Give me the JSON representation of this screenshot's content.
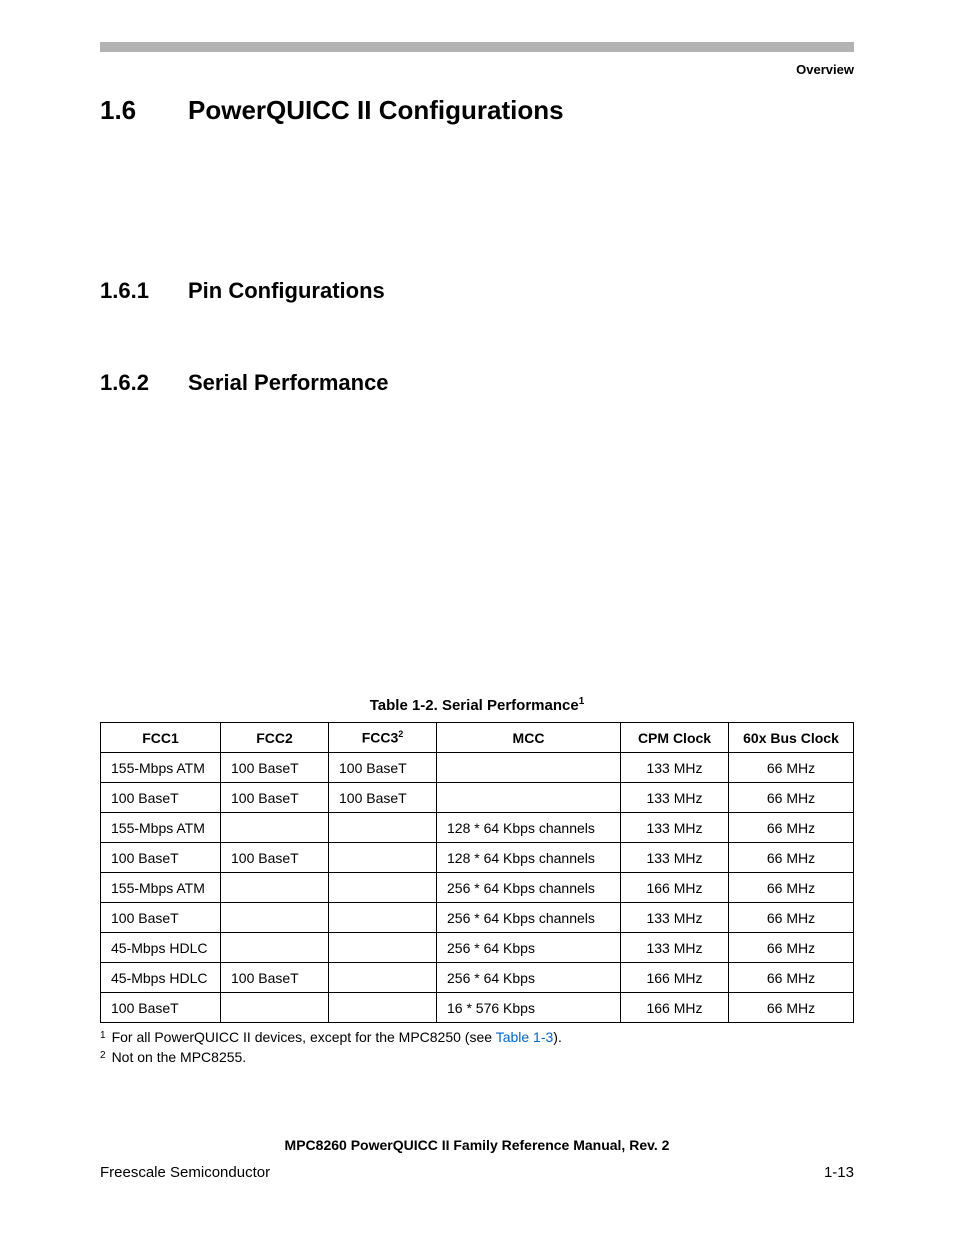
{
  "header": {
    "label": "Overview"
  },
  "sections": {
    "main": {
      "num": "1.6",
      "title": "PowerQUICC II Configurations"
    },
    "sub1": {
      "num": "1.6.1",
      "title": "Pin Configurations"
    },
    "sub2": {
      "num": "1.6.2",
      "title": "Serial Performance"
    }
  },
  "table": {
    "caption_prefix": "Table 1-2.  Serial Performance",
    "caption_sup": "1",
    "columns": {
      "c1": "FCC1",
      "c2": "FCC2",
      "c3": "FCC3",
      "c3_sup": "2",
      "c4": "MCC",
      "c5": "CPM Clock",
      "c6": "60x Bus Clock"
    },
    "rows": [
      {
        "fcc1": "155-Mbps ATM",
        "fcc2": "100 BaseT",
        "fcc3": "100 BaseT",
        "mcc": "",
        "cpm": "133 MHz",
        "bus": "66 MHz"
      },
      {
        "fcc1": "100 BaseT",
        "fcc2": "100 BaseT",
        "fcc3": "100 BaseT",
        "mcc": "",
        "cpm": "133 MHz",
        "bus": "66 MHz"
      },
      {
        "fcc1": "155-Mbps ATM",
        "fcc2": "",
        "fcc3": "",
        "mcc": "128 * 64 Kbps channels",
        "cpm": "133 MHz",
        "bus": "66 MHz"
      },
      {
        "fcc1": "100 BaseT",
        "fcc2": "100 BaseT",
        "fcc3": "",
        "mcc": "128 * 64 Kbps channels",
        "cpm": "133 MHz",
        "bus": "66 MHz"
      },
      {
        "fcc1": "155-Mbps ATM",
        "fcc2": "",
        "fcc3": "",
        "mcc": "256 * 64 Kbps channels",
        "cpm": "166 MHz",
        "bus": "66 MHz"
      },
      {
        "fcc1": "100 BaseT",
        "fcc2": "",
        "fcc3": "",
        "mcc": "256 * 64 Kbps channels",
        "cpm": "133 MHz",
        "bus": "66 MHz"
      },
      {
        "fcc1": "45-Mbps HDLC",
        "fcc2": "",
        "fcc3": "",
        "mcc": "256 * 64 Kbps",
        "cpm": "133 MHz",
        "bus": "66 MHz"
      },
      {
        "fcc1": "45-Mbps HDLC",
        "fcc2": "100 BaseT",
        "fcc3": "",
        "mcc": "256 * 64 Kbps",
        "cpm": "166 MHz",
        "bus": "66 MHz"
      },
      {
        "fcc1": "100 BaseT",
        "fcc2": "",
        "fcc3": "",
        "mcc": "16 * 576 Kbps",
        "cpm": "166 MHz",
        "bus": "66 MHz"
      }
    ]
  },
  "footnotes": {
    "f1_sup": "1",
    "f1_text_a": "For all PowerQUICC II devices, except for the MPC8250 (see ",
    "f1_link": "Table 1-3",
    "f1_text_b": ").",
    "f2_sup": "2",
    "f2_text": "Not on the MPC8255."
  },
  "footer": {
    "doc_title": "MPC8260 PowerQUICC II Family Reference Manual, Rev. 2",
    "left": "Freescale Semiconductor",
    "right": "1-13"
  }
}
